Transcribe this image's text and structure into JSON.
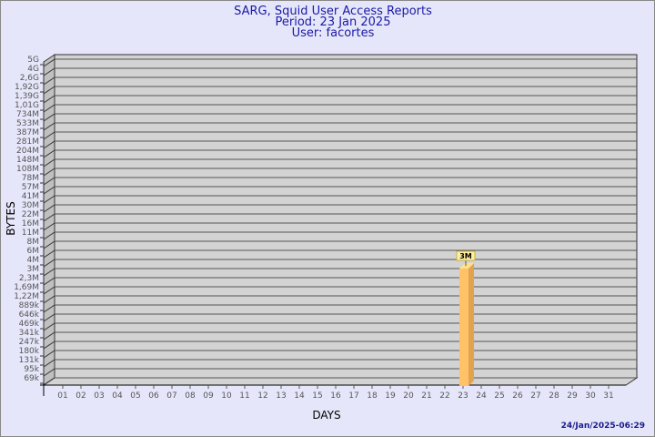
{
  "chart_data": {
    "type": "bar",
    "title": [
      "SARG, Squid User Access Reports",
      "Period: 23 Jan 2025",
      "User: facortes"
    ],
    "xlabel": "DAYS",
    "ylabel": "BYTES",
    "categories": [
      "01",
      "02",
      "03",
      "04",
      "05",
      "06",
      "07",
      "08",
      "09",
      "10",
      "11",
      "12",
      "13",
      "14",
      "15",
      "16",
      "17",
      "18",
      "19",
      "20",
      "21",
      "22",
      "23",
      "24",
      "25",
      "26",
      "27",
      "28",
      "29",
      "30",
      "31"
    ],
    "values": [
      null,
      null,
      null,
      null,
      null,
      null,
      null,
      null,
      null,
      null,
      null,
      null,
      null,
      null,
      null,
      null,
      null,
      null,
      null,
      null,
      null,
      null,
      3000000,
      null,
      null,
      null,
      null,
      null,
      null,
      null,
      null
    ],
    "data_labels": {
      "23": "3M"
    },
    "y_ticks": [
      "5G",
      "4G",
      "2,6G",
      "1,92G",
      "1,39G",
      "1,01G",
      "734M",
      "533M",
      "387M",
      "281M",
      "204M",
      "148M",
      "108M",
      "78M",
      "57M",
      "41M",
      "30M",
      "22M",
      "16M",
      "11M",
      "8M",
      "6M",
      "4M",
      "3M",
      "2,3M",
      "1,69M",
      "1,22M",
      "889k",
      "646k",
      "469k",
      "341k",
      "247k",
      "180k",
      "131k",
      "95k",
      "69k"
    ],
    "grid": true,
    "bar_color": "#ffc266",
    "footer": "24/Jan/2025-06:29"
  }
}
